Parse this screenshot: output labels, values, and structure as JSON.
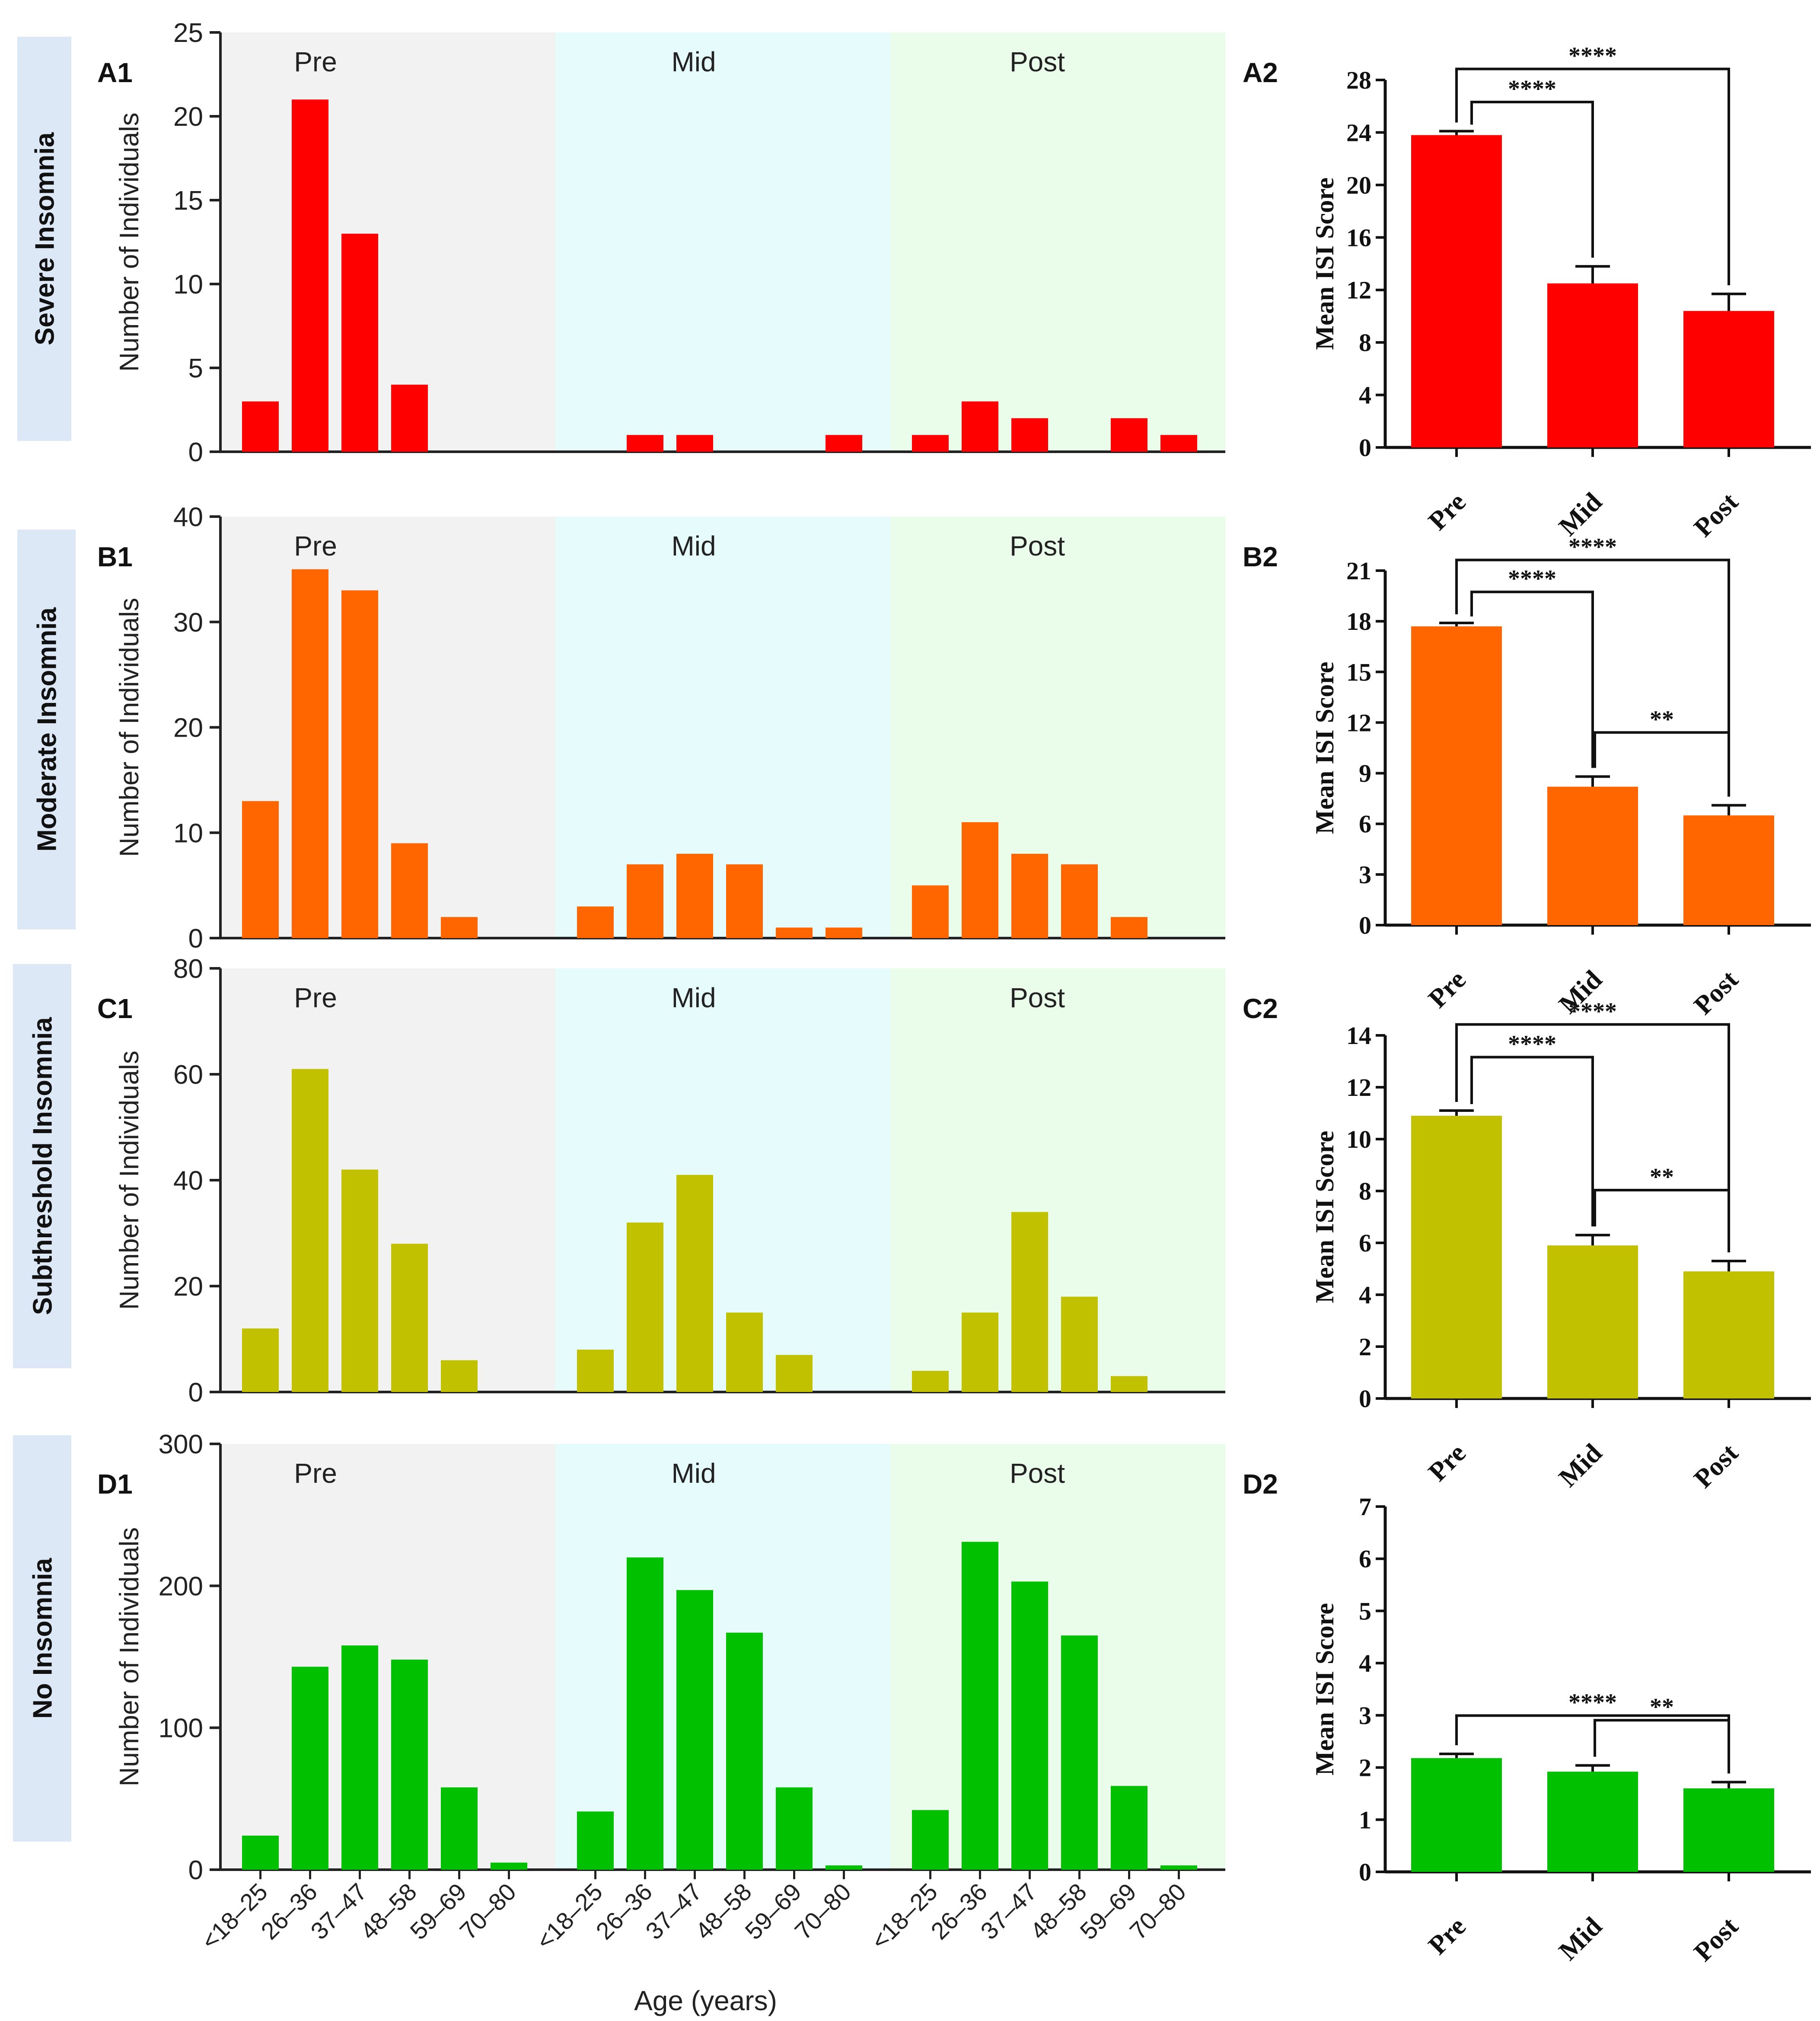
{
  "figure": {
    "x_axis_title": "Age (years)",
    "age_groups": [
      "<18–25",
      "26–36",
      "37–47",
      "48–58",
      "59–69",
      "70–80"
    ],
    "periods": [
      "Pre",
      "Mid",
      "Post"
    ],
    "period_colors": [
      "#f2f2f2",
      "#e6fcfc",
      "#eafcea"
    ]
  },
  "chart_data": [
    {
      "id": "A1",
      "row_label": "Severe Insomnia",
      "type": "bar",
      "ylabel": "Number of Individuals",
      "ylim": [
        0,
        25
      ],
      "yticks": [
        0,
        5,
        10,
        15,
        20,
        25
      ],
      "color": "#ff0000",
      "series": [
        {
          "name": "Pre",
          "values": [
            3,
            21,
            13,
            4,
            0,
            0
          ]
        },
        {
          "name": "Mid",
          "values": [
            0,
            1,
            1,
            0,
            0,
            1
          ]
        },
        {
          "name": "Post",
          "values": [
            1,
            3,
            2,
            0,
            2,
            1
          ]
        }
      ]
    },
    {
      "id": "A2",
      "type": "bar",
      "ylabel": "Mean ISI Score",
      "ylim": [
        0,
        28
      ],
      "yticks": [
        0,
        4,
        8,
        12,
        16,
        20,
        24,
        28
      ],
      "color": "#ff0000",
      "categories": [
        "Pre",
        "Mid",
        "Post"
      ],
      "values": [
        23.8,
        12.5,
        10.4
      ],
      "errors": [
        0.3,
        1.3,
        1.3
      ],
      "significance": [
        {
          "from": 0,
          "to": 2,
          "label": "****",
          "level": 2
        },
        {
          "from": 0,
          "to": 1,
          "label": "****",
          "level": 1
        }
      ]
    },
    {
      "id": "B1",
      "row_label": "Moderate Insomnia",
      "type": "bar",
      "ylabel": "Number of Individuals",
      "ylim": [
        0,
        40
      ],
      "yticks": [
        0,
        10,
        20,
        30,
        40
      ],
      "color": "#ff6600",
      "series": [
        {
          "name": "Pre",
          "values": [
            13,
            35,
            33,
            9,
            2,
            0
          ]
        },
        {
          "name": "Mid",
          "values": [
            3,
            7,
            8,
            7,
            1,
            1
          ]
        },
        {
          "name": "Post",
          "values": [
            5,
            11,
            8,
            7,
            2,
            0
          ]
        }
      ]
    },
    {
      "id": "B2",
      "type": "bar",
      "ylabel": "Mean ISI Score",
      "ylim": [
        0,
        21
      ],
      "yticks": [
        0,
        3,
        6,
        9,
        12,
        15,
        18,
        21
      ],
      "color": "#ff6600",
      "categories": [
        "Pre",
        "Mid",
        "Post"
      ],
      "values": [
        17.7,
        8.2,
        6.5
      ],
      "errors": [
        0.2,
        0.6,
        0.6
      ],
      "significance": [
        {
          "from": 0,
          "to": 2,
          "label": "****",
          "level": 2
        },
        {
          "from": 0,
          "to": 1,
          "label": "****",
          "level": 1
        },
        {
          "from": 1,
          "to": 2,
          "label": "**",
          "level": 0
        }
      ]
    },
    {
      "id": "C1",
      "row_label": "Subthreshold Insomnia",
      "type": "bar",
      "ylabel": "Number of Individuals",
      "ylim": [
        0,
        80
      ],
      "yticks": [
        0,
        20,
        40,
        60,
        80
      ],
      "color": "#c2c100",
      "series": [
        {
          "name": "Pre",
          "values": [
            12,
            61,
            42,
            28,
            6,
            0
          ]
        },
        {
          "name": "Mid",
          "values": [
            8,
            32,
            41,
            15,
            7,
            0
          ]
        },
        {
          "name": "Post",
          "values": [
            4,
            15,
            34,
            18,
            3,
            0
          ]
        }
      ]
    },
    {
      "id": "C2",
      "type": "bar",
      "ylabel": "Mean ISI Score",
      "ylim": [
        0,
        14
      ],
      "yticks": [
        0,
        2,
        4,
        6,
        8,
        10,
        12,
        14
      ],
      "color": "#c2c100",
      "categories": [
        "Pre",
        "Mid",
        "Post"
      ],
      "values": [
        10.9,
        5.9,
        4.9
      ],
      "errors": [
        0.2,
        0.4,
        0.4
      ],
      "significance": [
        {
          "from": 0,
          "to": 2,
          "label": "****",
          "level": 2
        },
        {
          "from": 0,
          "to": 1,
          "label": "****",
          "level": 1
        },
        {
          "from": 1,
          "to": 2,
          "label": "**",
          "level": 0
        }
      ]
    },
    {
      "id": "D1",
      "row_label": "No Insomnia",
      "type": "bar",
      "ylabel": "Number of Individuals",
      "ylim": [
        0,
        300
      ],
      "yticks": [
        0,
        100,
        200,
        300
      ],
      "color": "#00c000",
      "series": [
        {
          "name": "Pre",
          "values": [
            24,
            143,
            158,
            148,
            58,
            5
          ]
        },
        {
          "name": "Mid",
          "values": [
            41,
            220,
            197,
            167,
            58,
            3
          ]
        },
        {
          "name": "Post",
          "values": [
            42,
            231,
            203,
            165,
            59,
            3
          ]
        }
      ]
    },
    {
      "id": "D2",
      "type": "bar",
      "ylabel": "Mean ISI Score",
      "ylim": [
        0,
        7
      ],
      "yticks": [
        0,
        1,
        2,
        3,
        4,
        5,
        6,
        7
      ],
      "color": "#00c000",
      "categories": [
        "Pre",
        "Mid",
        "Post"
      ],
      "values": [
        2.18,
        1.92,
        1.6
      ],
      "errors": [
        0.08,
        0.12,
        0.12
      ],
      "significance": [
        {
          "from": 0,
          "to": 2,
          "label": "****",
          "level": 1
        },
        {
          "from": 1,
          "to": 2,
          "label": "**",
          "level": 0
        }
      ]
    }
  ]
}
